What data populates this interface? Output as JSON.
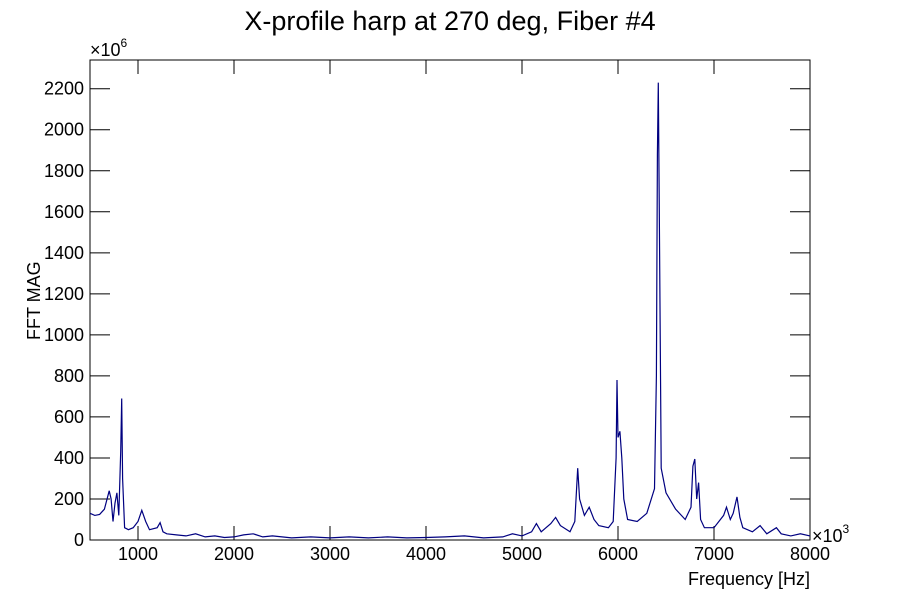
{
  "chart_data": {
    "type": "line",
    "title": "X-profile harp at 270 deg, Fiber #4",
    "x_label": "Frequency [Hz]",
    "y_label": "FFT MAG",
    "x_multiplier": {
      "base": "×10",
      "exp": "3"
    },
    "y_multiplier": {
      "base": "×10",
      "exp": "6"
    },
    "xlim": [
      500,
      8000
    ],
    "ylim": [
      0,
      2340
    ],
    "xticks": [
      1000,
      2000,
      3000,
      4000,
      5000,
      6000,
      7000,
      8000
    ],
    "yticks": [
      0,
      200,
      400,
      600,
      800,
      1000,
      1200,
      1400,
      1600,
      1800,
      2000,
      2200
    ],
    "series": [
      {
        "color": "#000080",
        "x": [
          500,
          550,
          600,
          650,
          700,
          720,
          740,
          760,
          780,
          800,
          820,
          830,
          840,
          860,
          900,
          950,
          1000,
          1040,
          1080,
          1120,
          1200,
          1230,
          1260,
          1300,
          1400,
          1500,
          1600,
          1700,
          1800,
          1900,
          2000,
          2100,
          2200,
          2300,
          2400,
          2600,
          2800,
          3000,
          3200,
          3400,
          3600,
          3800,
          4000,
          4200,
          4400,
          4600,
          4800,
          4900,
          5000,
          5100,
          5150,
          5200,
          5300,
          5350,
          5400,
          5500,
          5550,
          5580,
          5600,
          5650,
          5700,
          5750,
          5800,
          5900,
          5950,
          5980,
          5990,
          6000,
          6020,
          6040,
          6060,
          6100,
          6200,
          6300,
          6380,
          6400,
          6410,
          6420,
          6430,
          6450,
          6500,
          6600,
          6700,
          6760,
          6780,
          6800,
          6820,
          6840,
          6860,
          6900,
          7000,
          7100,
          7130,
          7170,
          7200,
          7240,
          7270,
          7300,
          7400,
          7480,
          7550,
          7650,
          7700,
          7800,
          7900,
          8000
        ],
        "values": [
          130,
          120,
          125,
          150,
          240,
          200,
          90,
          180,
          230,
          120,
          430,
          690,
          300,
          60,
          50,
          60,
          90,
          145,
          90,
          50,
          60,
          85,
          40,
          30,
          25,
          20,
          30,
          15,
          20,
          12,
          15,
          25,
          30,
          15,
          20,
          10,
          15,
          10,
          15,
          10,
          15,
          10,
          12,
          15,
          20,
          10,
          15,
          30,
          20,
          40,
          80,
          40,
          80,
          110,
          70,
          40,
          90,
          350,
          200,
          120,
          160,
          100,
          70,
          60,
          90,
          400,
          780,
          500,
          530,
          400,
          200,
          100,
          90,
          130,
          250,
          800,
          1880,
          2230,
          1600,
          350,
          230,
          150,
          100,
          160,
          360,
          395,
          200,
          280,
          100,
          60,
          60,
          120,
          160,
          100,
          130,
          210,
          110,
          60,
          40,
          70,
          30,
          60,
          30,
          20,
          30,
          20
        ]
      }
    ]
  }
}
